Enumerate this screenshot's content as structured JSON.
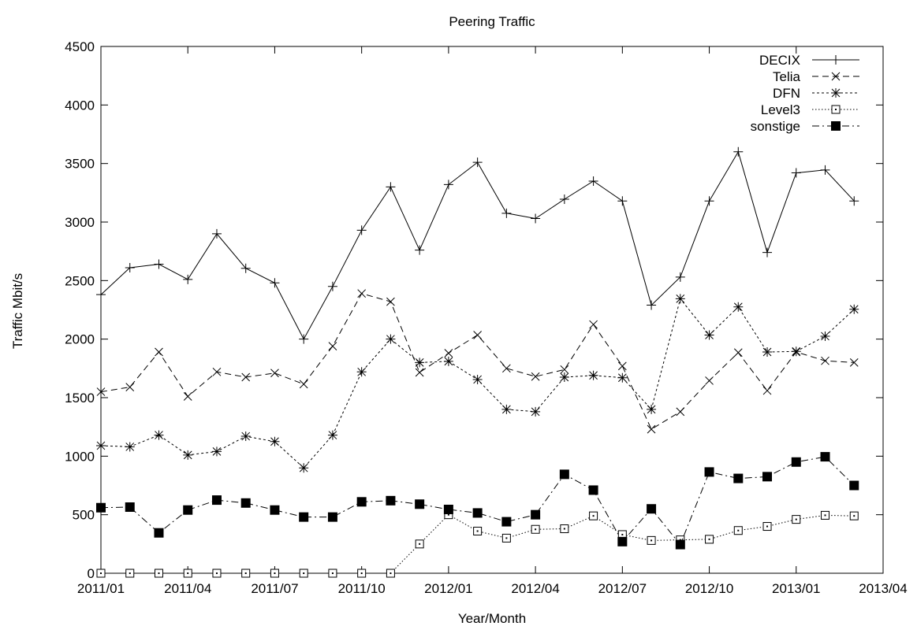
{
  "chart_data": {
    "type": "line",
    "title": "Peering Traffic",
    "xlabel": "Year/Month",
    "ylabel": "Traffic Mbit/s",
    "ylim": [
      0,
      4500
    ],
    "y_ticks": [
      0,
      500,
      1000,
      1500,
      2000,
      2500,
      3000,
      3500,
      4000,
      4500
    ],
    "y_tick_labels": [
      "0",
      "500",
      "1000",
      "1500",
      "2000",
      "2500",
      "3000",
      "3500",
      "4000",
      "4500"
    ],
    "xlim": [
      "2011/01",
      "2013/04"
    ],
    "x_ticks": [
      "2011/01",
      "2011/04",
      "2011/07",
      "2011/10",
      "2012/01",
      "2012/04",
      "2012/07",
      "2012/10",
      "2013/01",
      "2013/04"
    ],
    "legend_position": "top-right",
    "grid": false,
    "x": [
      "2011/01",
      "2011/02",
      "2011/03",
      "2011/04",
      "2011/05",
      "2011/06",
      "2011/07",
      "2011/08",
      "2011/09",
      "2011/10",
      "2011/11",
      "2011/12",
      "2012/01",
      "2012/02",
      "2012/03",
      "2012/04",
      "2012/05",
      "2012/06",
      "2012/07",
      "2012/08",
      "2012/09",
      "2012/10",
      "2012/11",
      "2012/12",
      "2013/01",
      "2013/02",
      "2013/03"
    ],
    "series": [
      {
        "name": "DECIX",
        "marker": "plus",
        "dash": "solid",
        "values": [
          2380,
          2610,
          2640,
          2510,
          2900,
          2605,
          2480,
          2000,
          2450,
          2930,
          3300,
          2760,
          3320,
          3510,
          3075,
          3030,
          3195,
          3350,
          3180,
          2290,
          2530,
          3180,
          3600,
          2740,
          3420,
          3445,
          3180
        ]
      },
      {
        "name": "Telia",
        "marker": "cross",
        "dash": "dashed",
        "values": [
          1550,
          1590,
          1890,
          1510,
          1720,
          1675,
          1710,
          1615,
          1940,
          2390,
          2320,
          1715,
          1880,
          2035,
          1750,
          1680,
          1740,
          2125,
          1770,
          1230,
          1380,
          1645,
          1885,
          1560,
          1890,
          1815,
          1800
        ]
      },
      {
        "name": "DFN",
        "marker": "star",
        "dash": "dotted",
        "values": [
          1090,
          1080,
          1180,
          1010,
          1040,
          1170,
          1125,
          900,
          1180,
          1720,
          2000,
          1800,
          1810,
          1655,
          1400,
          1380,
          1675,
          1690,
          1670,
          1400,
          2345,
          2035,
          2275,
          1890,
          1895,
          2025,
          2255
        ]
      },
      {
        "name": "Level3",
        "marker": "open-square",
        "dash": "fine-dotted",
        "values": [
          0,
          0,
          0,
          0,
          0,
          0,
          0,
          0,
          0,
          0,
          0,
          250,
          500,
          360,
          300,
          375,
          380,
          490,
          330,
          280,
          285,
          290,
          365,
          400,
          460,
          495,
          490
        ]
      },
      {
        "name": "sonstige",
        "marker": "filled-square",
        "dash": "dash-dot",
        "values": [
          560,
          565,
          345,
          540,
          625,
          600,
          540,
          480,
          480,
          610,
          620,
          590,
          545,
          515,
          440,
          500,
          845,
          710,
          270,
          550,
          245,
          865,
          810,
          825,
          950,
          995,
          750
        ]
      }
    ]
  }
}
